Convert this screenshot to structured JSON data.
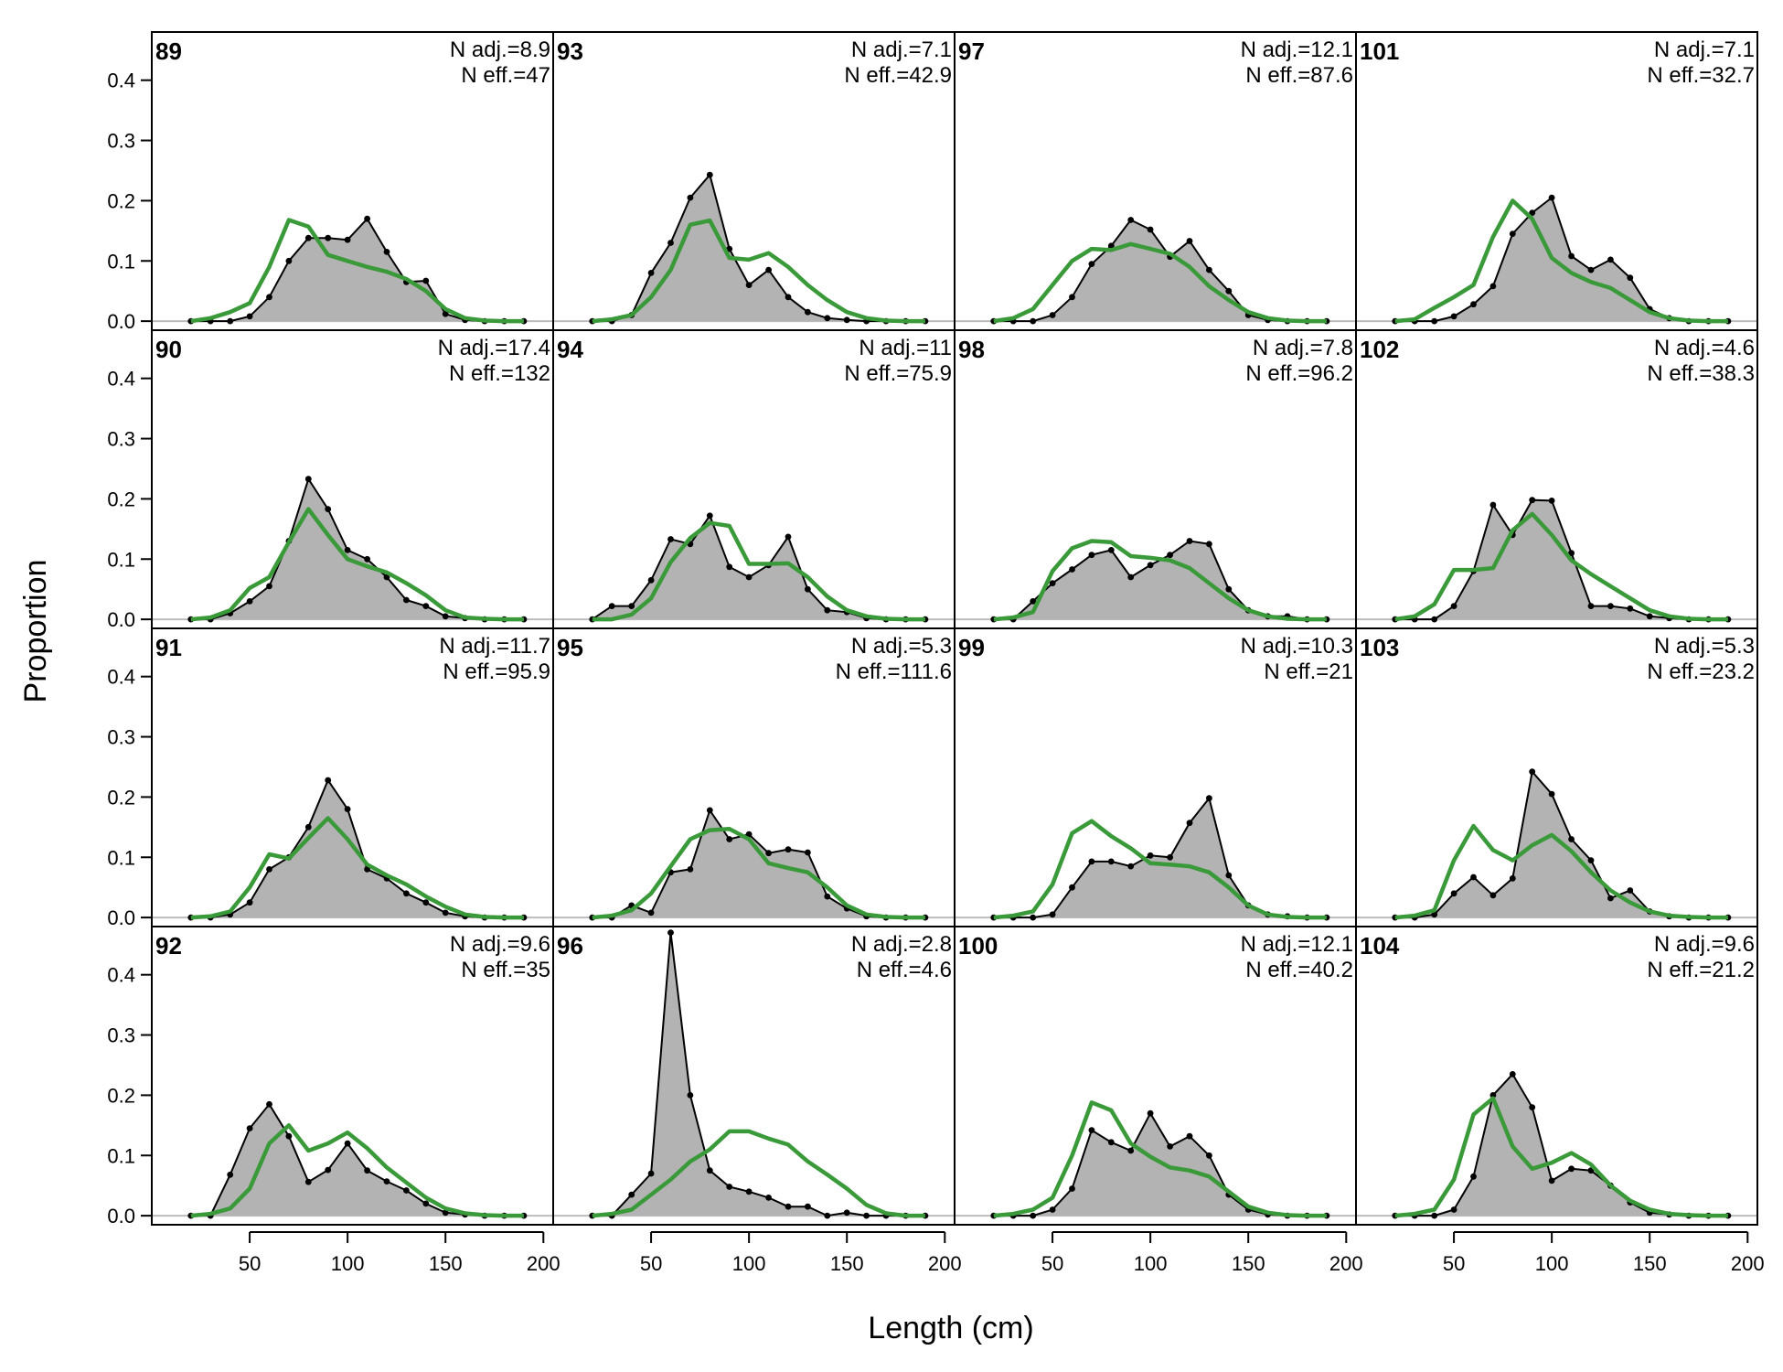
{
  "chart_data": {
    "type": "area",
    "xlabel": "Length (cm)",
    "ylabel": "Proportion",
    "xlim": [
      0,
      205
    ],
    "ylim": [
      -0.015,
      0.48
    ],
    "x_ticks": [
      50,
      100,
      150,
      200
    ],
    "y_ticks": [
      0.0,
      0.1,
      0.2,
      0.3,
      0.4
    ],
    "x_tick_labels": [
      "50",
      "100",
      "150",
      "200"
    ],
    "y_tick_labels": [
      "0.0",
      "0.1",
      "0.2",
      "0.3",
      "0.4"
    ],
    "layout": "4 columns x 4 rows, read down columns",
    "x": [
      20,
      30,
      40,
      50,
      60,
      70,
      80,
      90,
      100,
      110,
      120,
      130,
      140,
      150,
      160,
      170,
      180,
      190
    ],
    "colors": {
      "observed_fill": "#b3b3b3",
      "observed_line": "#000000",
      "expected_line": "#3a9a3a",
      "zero_line": "#bdbdbd"
    },
    "series_names": [
      "observed",
      "expected"
    ],
    "panels": [
      {
        "label": "89",
        "n_adj": "N adj.=8.9",
        "n_eff": "N eff.=47",
        "observed": [
          0,
          0,
          0,
          0.008,
          0.04,
          0.1,
          0.138,
          0.138,
          0.135,
          0.17,
          0.115,
          0.065,
          0.067,
          0.012,
          0.002,
          0,
          0,
          0
        ],
        "expected": [
          0,
          0.005,
          0.015,
          0.03,
          0.09,
          0.168,
          0.157,
          0.11,
          0.1,
          0.09,
          0.082,
          0.07,
          0.05,
          0.02,
          0.005,
          0.001,
          0,
          0
        ]
      },
      {
        "label": "90",
        "n_adj": "N adj.=17.4",
        "n_eff": "N eff.=132",
        "observed": [
          0,
          0,
          0.01,
          0.03,
          0.055,
          0.13,
          0.233,
          0.183,
          0.115,
          0.1,
          0.07,
          0.032,
          0.022,
          0.005,
          0.002,
          0,
          0,
          0
        ],
        "expected": [
          0,
          0.003,
          0.015,
          0.052,
          0.07,
          0.128,
          0.183,
          0.14,
          0.1,
          0.088,
          0.078,
          0.06,
          0.04,
          0.015,
          0.003,
          0.001,
          0,
          0
        ]
      },
      {
        "label": "91",
        "n_adj": "N adj.=11.7",
        "n_eff": "N eff.=95.9",
        "observed": [
          0,
          0,
          0.005,
          0.025,
          0.08,
          0.1,
          0.15,
          0.228,
          0.18,
          0.08,
          0.065,
          0.04,
          0.025,
          0.008,
          0.002,
          0,
          0,
          0
        ],
        "expected": [
          0,
          0.002,
          0.01,
          0.05,
          0.105,
          0.098,
          0.132,
          0.165,
          0.13,
          0.088,
          0.07,
          0.055,
          0.035,
          0.018,
          0.005,
          0.001,
          0,
          0
        ]
      },
      {
        "label": "92",
        "n_adj": "N adj.=9.6",
        "n_eff": "N eff.=35",
        "observed": [
          0,
          0,
          0.068,
          0.145,
          0.185,
          0.132,
          0.056,
          0.076,
          0.12,
          0.075,
          0.057,
          0.042,
          0.02,
          0.005,
          0.002,
          0,
          0,
          0
        ],
        "expected": [
          0,
          0.003,
          0.012,
          0.045,
          0.12,
          0.15,
          0.108,
          0.12,
          0.138,
          0.112,
          0.08,
          0.055,
          0.03,
          0.012,
          0.004,
          0.001,
          0,
          0
        ]
      },
      {
        "label": "93",
        "n_adj": "N adj.=7.1",
        "n_eff": "N eff.=42.9",
        "observed": [
          0,
          0,
          0.01,
          0.08,
          0.13,
          0.205,
          0.243,
          0.12,
          0.06,
          0.085,
          0.04,
          0.015,
          0.005,
          0.002,
          0,
          0,
          0,
          0
        ],
        "expected": [
          0,
          0.003,
          0.01,
          0.04,
          0.085,
          0.16,
          0.167,
          0.105,
          0.102,
          0.113,
          0.09,
          0.06,
          0.035,
          0.015,
          0.005,
          0.001,
          0,
          0
        ]
      },
      {
        "label": "94",
        "n_adj": "N adj.=11",
        "n_eff": "N eff.=75.9",
        "observed": [
          0,
          0.022,
          0.022,
          0.065,
          0.133,
          0.125,
          0.172,
          0.087,
          0.07,
          0.09,
          0.137,
          0.05,
          0.015,
          0.012,
          0.002,
          0,
          0,
          0
        ],
        "expected": [
          0,
          0,
          0.008,
          0.035,
          0.095,
          0.135,
          0.16,
          0.155,
          0.092,
          0.092,
          0.093,
          0.07,
          0.038,
          0.015,
          0.005,
          0.001,
          0,
          0
        ]
      },
      {
        "label": "95",
        "n_adj": "N adj.=5.3",
        "n_eff": "N eff.=111.6",
        "observed": [
          0,
          0,
          0.02,
          0.008,
          0.075,
          0.08,
          0.178,
          0.13,
          0.138,
          0.107,
          0.113,
          0.108,
          0.035,
          0.015,
          0.002,
          0,
          0,
          0
        ],
        "expected": [
          0,
          0.003,
          0.012,
          0.04,
          0.085,
          0.13,
          0.145,
          0.147,
          0.13,
          0.09,
          0.082,
          0.075,
          0.05,
          0.02,
          0.005,
          0.001,
          0,
          0
        ]
      },
      {
        "label": "96",
        "n_adj": "N adj.=2.8",
        "n_eff": "N eff.=4.6",
        "observed": [
          0,
          0,
          0.035,
          0.07,
          0.47,
          0.2,
          0.075,
          0.048,
          0.04,
          0.03,
          0.015,
          0.015,
          0,
          0.005,
          0,
          0,
          0,
          0
        ],
        "expected": [
          0,
          0.003,
          0.01,
          0.035,
          0.06,
          0.09,
          0.11,
          0.14,
          0.14,
          0.128,
          0.118,
          0.09,
          0.068,
          0.045,
          0.018,
          0.004,
          0,
          0
        ]
      },
      {
        "label": "97",
        "n_adj": "N adj.=12.1",
        "n_eff": "N eff.=87.6",
        "observed": [
          0,
          0,
          0,
          0.01,
          0.04,
          0.095,
          0.125,
          0.168,
          0.152,
          0.107,
          0.133,
          0.085,
          0.05,
          0.01,
          0.002,
          0,
          0,
          0
        ],
        "expected": [
          0,
          0.005,
          0.02,
          0.06,
          0.1,
          0.12,
          0.118,
          0.128,
          0.12,
          0.112,
          0.09,
          0.058,
          0.035,
          0.015,
          0.005,
          0.001,
          0,
          0
        ]
      },
      {
        "label": "98",
        "n_adj": "N adj.=7.8",
        "n_eff": "N eff.=96.2",
        "observed": [
          0,
          0,
          0.03,
          0.06,
          0.083,
          0.107,
          0.115,
          0.07,
          0.09,
          0.107,
          0.13,
          0.125,
          0.05,
          0.015,
          0.005,
          0.005,
          0,
          0
        ],
        "expected": [
          0,
          0.003,
          0.012,
          0.08,
          0.118,
          0.13,
          0.128,
          0.105,
          0.102,
          0.098,
          0.085,
          0.06,
          0.035,
          0.015,
          0.005,
          0.001,
          0,
          0
        ]
      },
      {
        "label": "99",
        "n_adj": "N adj.=10.3",
        "n_eff": "N eff.=21",
        "observed": [
          0,
          0,
          0,
          0.005,
          0.05,
          0.093,
          0.093,
          0.085,
          0.103,
          0.1,
          0.157,
          0.198,
          0.07,
          0.02,
          0.005,
          0.002,
          0,
          0
        ],
        "expected": [
          0,
          0.003,
          0.01,
          0.055,
          0.14,
          0.16,
          0.135,
          0.115,
          0.09,
          0.088,
          0.085,
          0.075,
          0.05,
          0.02,
          0.005,
          0.001,
          0,
          0
        ]
      },
      {
        "label": "100",
        "n_adj": "N adj.=12.1",
        "n_eff": "N eff.=40.2",
        "observed": [
          0,
          0,
          0,
          0.01,
          0.045,
          0.142,
          0.122,
          0.108,
          0.17,
          0.115,
          0.132,
          0.1,
          0.035,
          0.01,
          0.002,
          0,
          0,
          0
        ],
        "expected": [
          0,
          0.003,
          0.01,
          0.03,
          0.1,
          0.188,
          0.175,
          0.12,
          0.098,
          0.08,
          0.075,
          0.065,
          0.04,
          0.015,
          0.005,
          0.001,
          0,
          0
        ]
      },
      {
        "label": "101",
        "n_adj": "N adj.=7.1",
        "n_eff": "N eff.=32.7",
        "observed": [
          0,
          0,
          0,
          0.008,
          0.028,
          0.058,
          0.145,
          0.18,
          0.205,
          0.108,
          0.085,
          0.102,
          0.072,
          0.02,
          0.005,
          0,
          0,
          0
        ],
        "expected": [
          0,
          0.003,
          0.022,
          0.04,
          0.06,
          0.14,
          0.2,
          0.17,
          0.105,
          0.08,
          0.065,
          0.055,
          0.035,
          0.015,
          0.005,
          0.001,
          0,
          0
        ]
      },
      {
        "label": "102",
        "n_adj": "N adj.=4.6",
        "n_eff": "N eff.=38.3",
        "observed": [
          0,
          0,
          0,
          0.022,
          0.08,
          0.19,
          0.14,
          0.198,
          0.197,
          0.11,
          0.022,
          0.022,
          0.018,
          0.005,
          0.002,
          0,
          0,
          0
        ],
        "expected": [
          0,
          0.005,
          0.025,
          0.082,
          0.082,
          0.085,
          0.148,
          0.175,
          0.14,
          0.098,
          0.075,
          0.055,
          0.035,
          0.015,
          0.005,
          0.001,
          0,
          0
        ]
      },
      {
        "label": "103",
        "n_adj": "N adj.=5.3",
        "n_eff": "N eff.=23.2",
        "observed": [
          0,
          0,
          0.005,
          0.04,
          0.067,
          0.037,
          0.065,
          0.242,
          0.205,
          0.13,
          0.095,
          0.032,
          0.045,
          0.01,
          0.002,
          0,
          0,
          0
        ],
        "expected": [
          0,
          0.003,
          0.012,
          0.095,
          0.152,
          0.112,
          0.095,
          0.12,
          0.137,
          0.11,
          0.075,
          0.045,
          0.025,
          0.01,
          0.003,
          0.001,
          0,
          0
        ]
      },
      {
        "label": "104",
        "n_adj": "N adj.=9.6",
        "n_eff": "N eff.=21.2",
        "observed": [
          0,
          0,
          0,
          0.01,
          0.065,
          0.2,
          0.235,
          0.18,
          0.058,
          0.078,
          0.075,
          0.05,
          0.022,
          0.005,
          0.002,
          0,
          0,
          0
        ],
        "expected": [
          0,
          0.003,
          0.01,
          0.06,
          0.168,
          0.195,
          0.115,
          0.078,
          0.088,
          0.104,
          0.085,
          0.05,
          0.025,
          0.01,
          0.003,
          0.001,
          0,
          0
        ]
      }
    ]
  }
}
